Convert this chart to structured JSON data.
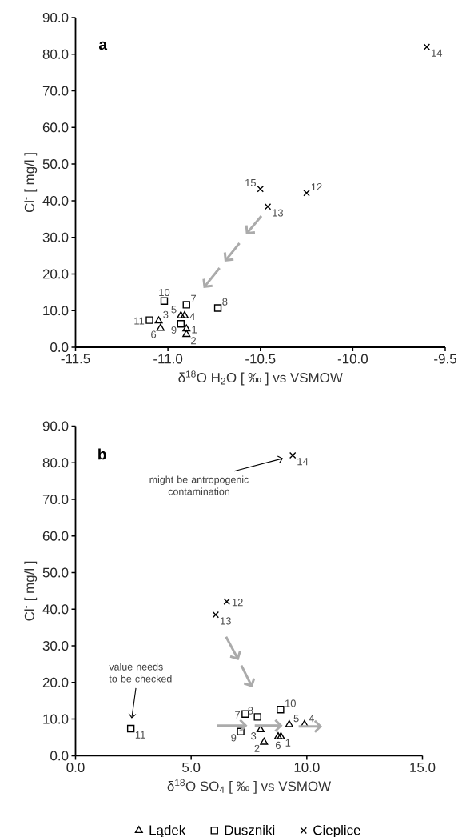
{
  "chart_data": [
    {
      "type": "scatter",
      "title": "a",
      "xlabel": "δ$^{18}$O  H$_{2}$O [ ‰ ] vs VSMOW",
      "ylabel": "Cl$^{-}$  [ mg/l ]",
      "xlim": [
        -11.5,
        -9.5
      ],
      "ylim": [
        0,
        90
      ],
      "xticks": [
        -11.5,
        {
          "value": -11,
          "label": "-11.0"
        },
        -10.5,
        {
          "value": -10,
          "label": "-10.0"
        },
        -9.5
      ],
      "yticks": [
        {
          "value": 0,
          "label": "0.0"
        },
        {
          "value": 10,
          "label": "10.0"
        },
        {
          "value": 20,
          "label": "20.0"
        },
        {
          "value": 30,
          "label": "30.0"
        },
        {
          "value": 40,
          "label": "40.0"
        },
        {
          "value": 50,
          "label": "50.0"
        },
        {
          "value": 60,
          "label": "60.0"
        },
        {
          "value": 70,
          "label": "70.0"
        },
        {
          "value": 80,
          "label": "80.0"
        },
        {
          "value": 90,
          "label": "90.0"
        }
      ],
      "series": [
        {
          "color": "#000000",
          "marker": "triangle",
          "x": [
            -10.9,
            -10.9,
            -11.05,
            -10.91,
            -10.93,
            -11.04
          ],
          "values": [
            5.0,
            3.5,
            7.2,
            8.6,
            8.6,
            5.2
          ]
        },
        {
          "color": "#000000",
          "marker": "square",
          "x": [
            -10.9,
            -10.73,
            -10.93,
            -11.02,
            -11.1
          ],
          "values": [
            11.6,
            10.7,
            6.4,
            12.6,
            7.4
          ]
        },
        {
          "color": "#000000",
          "marker": "cross",
          "x": [
            -10.25,
            -10.46,
            -9.6,
            -10.5
          ],
          "values": [
            42.1,
            38.4,
            82.0,
            43.2
          ]
        }
      ],
      "annotations": [
        {
          "text": "1",
          "x": -10.9,
          "y": 5.0
        },
        {
          "text": "2",
          "x": -10.9,
          "y": 3.5
        },
        {
          "text": "3",
          "x": -11.05,
          "y": 7.2
        },
        {
          "text": "4",
          "x": -10.91,
          "y": 8.6
        },
        {
          "text": "5",
          "x": -10.93,
          "y": 8.6
        },
        {
          "text": "6",
          "x": -11.04,
          "y": 5.2
        },
        {
          "text": "7",
          "x": -10.9,
          "y": 11.6
        },
        {
          "text": "8",
          "x": -10.73,
          "y": 10.7
        },
        {
          "text": "9",
          "x": -10.93,
          "y": 6.4
        },
        {
          "text": "10",
          "x": -11.02,
          "y": 12.6
        },
        {
          "text": "11",
          "x": -11.1,
          "y": 7.4
        },
        {
          "text": "12",
          "x": -10.25,
          "y": 42.1
        },
        {
          "text": "13",
          "x": -10.46,
          "y": 38.4
        },
        {
          "text": "14",
          "x": -9.6,
          "y": 82.0
        },
        {
          "text": "15",
          "x": -10.5,
          "y": 43.2
        }
      ]
    },
    {
      "type": "scatter",
      "title": "b",
      "xlabel": "δ$^{18}$O  SO$_{4}$ [ ‰ ] vs VSMOW",
      "ylabel": "Cl$^{-}$  [ mg/l ]",
      "xlim": [
        0,
        15
      ],
      "ylim": [
        0,
        90
      ],
      "xticks": [
        {
          "value": 0,
          "label": "0.0"
        },
        {
          "value": 5,
          "label": "5.0"
        },
        {
          "value": 10,
          "label": "10.0"
        },
        {
          "value": 15,
          "label": "15.0"
        }
      ],
      "yticks": [
        {
          "value": 0,
          "label": "0.0"
        },
        {
          "value": 10,
          "label": "10.0"
        },
        {
          "value": 20,
          "label": "20.0"
        },
        {
          "value": 30,
          "label": "30.0"
        },
        {
          "value": 40,
          "label": "40.0"
        },
        {
          "value": 50,
          "label": "50.0"
        },
        {
          "value": 60,
          "label": "60.0"
        },
        {
          "value": 70,
          "label": "70.0"
        },
        {
          "value": 80,
          "label": "80.0"
        },
        {
          "value": 90,
          "label": "90.0"
        }
      ],
      "legend": "bottom",
      "series": [
        {
          "name": "Lądek",
          "color": "#000000",
          "marker": "triangle",
          "x": [
            8.88,
            8.15,
            8.0,
            9.9,
            9.24,
            8.76
          ],
          "values": [
            5.2,
            3.7,
            7.1,
            8.5,
            8.5,
            5.2
          ]
        },
        {
          "name": "Duszniki",
          "color": "#000000",
          "marker": "square",
          "x": [
            7.34,
            7.87,
            7.14,
            8.86,
            2.39
          ],
          "values": [
            11.4,
            10.6,
            6.6,
            12.6,
            7.4
          ]
        },
        {
          "name": "Cieplice",
          "color": "#000000",
          "marker": "cross",
          "x": [
            6.54,
            6.06,
            9.39
          ],
          "values": [
            42.1,
            38.5,
            82.0
          ]
        }
      ],
      "annotations": [
        "might be antropogenic contamination",
        "value needs to be checked",
        {
          "text": "1",
          "x": 8.88,
          "y": 5.2
        },
        {
          "text": "2",
          "x": 8.15,
          "y": 3.7
        },
        {
          "text": "3",
          "x": 8.0,
          "y": 7.1
        },
        {
          "text": "4",
          "x": 9.9,
          "y": 8.5
        },
        {
          "text": "5",
          "x": 9.24,
          "y": 8.5
        },
        {
          "text": "6",
          "x": 8.76,
          "y": 5.2
        },
        {
          "text": "7",
          "x": 7.34,
          "y": 11.4
        },
        {
          "text": "8",
          "x": 7.87,
          "y": 10.6
        },
        {
          "text": "9",
          "x": 7.14,
          "y": 6.6
        },
        {
          "text": "10",
          "x": 8.86,
          "y": 12.6
        },
        {
          "text": "11",
          "x": 2.39,
          "y": 7.4
        },
        {
          "text": "12",
          "x": 6.54,
          "y": 42.1
        },
        {
          "text": "13",
          "x": 6.06,
          "y": 38.5
        },
        {
          "text": "14",
          "x": 9.39,
          "y": 82.0
        }
      ]
    }
  ]
}
